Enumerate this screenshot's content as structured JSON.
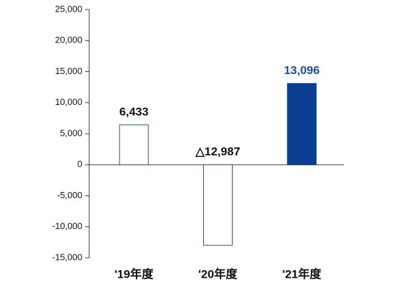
{
  "chart_data": {
    "type": "bar",
    "categories": [
      "'19年度",
      "'20年度",
      "'21年度"
    ],
    "values": [
      6433,
      -12987,
      13096
    ],
    "value_labels": [
      "6,433",
      "△12,987",
      "13,096"
    ],
    "bar_fills": [
      "#ffffff",
      "#ffffff",
      "#0b3d91"
    ],
    "bar_strokes": [
      "#1f4e96",
      "#1f4e96",
      "#0b3d91"
    ],
    "value_label_colors": [
      "#111111",
      "#111111",
      "#1f4e96"
    ],
    "ylim": [
      -15000,
      25000
    ],
    "yticks": [
      {
        "value": -15000,
        "label": "-15,000"
      },
      {
        "value": -10000,
        "label": "-10,000"
      },
      {
        "value": -5000,
        "label": "-5,000"
      },
      0,
      {
        "value": 5000,
        "label": "5,000"
      },
      {
        "value": 10000,
        "label": "10,000"
      },
      {
        "value": 15000,
        "label": "15,000"
      },
      {
        "value": 20000,
        "label": "20,000"
      },
      {
        "value": 25000,
        "label": "25,000"
      }
    ],
    "grid": false
  }
}
